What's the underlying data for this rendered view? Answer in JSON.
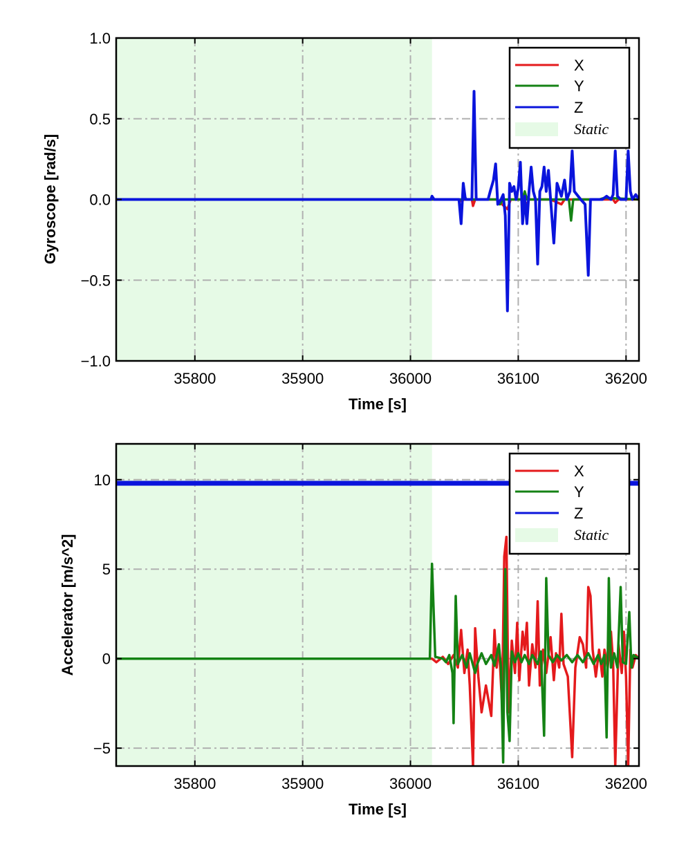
{
  "colors": {
    "x": "#e41a1c",
    "y": "#148214",
    "z": "#0a14dc",
    "static": "#e6fae6",
    "grid": "#b0b0b0"
  },
  "chart_data": [
    {
      "type": "line",
      "xlabel": "Time [s]",
      "ylabel": "Gyroscope [rad/s]",
      "xlim": [
        35727,
        36212
      ],
      "ylim": [
        -1.0,
        1.0
      ],
      "x_ticks": [
        35800,
        35900,
        36000,
        36100,
        36200
      ],
      "y_ticks": [
        -1.0,
        -0.5,
        0.0,
        0.5,
        1.0
      ],
      "y_tick_labels": [
        "−1.0",
        "−0.5",
        "0.0",
        "0.5",
        "1.0"
      ],
      "grid": true,
      "legend_position": "top-right",
      "legend": [
        "X",
        "Y",
        "Z",
        "Static"
      ],
      "static_region": [
        35727,
        36020
      ],
      "series": [
        {
          "name": "X",
          "color": "x",
          "points": [
            [
              35727,
              0
            ],
            [
              36020,
              0
            ],
            [
              36045,
              0
            ],
            [
              36047,
              -0.01
            ],
            [
              36050,
              0
            ],
            [
              36057,
              0
            ],
            [
              36058,
              -0.04
            ],
            [
              36060,
              0
            ],
            [
              36080,
              0
            ],
            [
              36090,
              -0.06
            ],
            [
              36093,
              0
            ],
            [
              36104,
              0
            ],
            [
              36107,
              -0.05
            ],
            [
              36110,
              0
            ],
            [
              36130,
              0
            ],
            [
              36140,
              -0.03
            ],
            [
              36143,
              0
            ],
            [
              36170,
              0
            ],
            [
              36188,
              0
            ],
            [
              36190,
              -0.02
            ],
            [
              36193,
              0
            ],
            [
              36212,
              0
            ]
          ]
        },
        {
          "name": "Y",
          "color": "y",
          "points": [
            [
              35727,
              0
            ],
            [
              36020,
              0
            ],
            [
              36049,
              0
            ],
            [
              36050,
              0.02
            ],
            [
              36052,
              0
            ],
            [
              36080,
              0
            ],
            [
              36083,
              -0.03
            ],
            [
              36086,
              0
            ],
            [
              36104,
              0
            ],
            [
              36106,
              0.05
            ],
            [
              36108,
              0
            ],
            [
              36147,
              0
            ],
            [
              36149,
              -0.13
            ],
            [
              36151,
              0
            ],
            [
              36175,
              0
            ],
            [
              36180,
              0.01
            ],
            [
              36212,
              0
            ]
          ]
        },
        {
          "name": "Z",
          "color": "z",
          "points": [
            [
              35727,
              0
            ],
            [
              36019,
              0
            ],
            [
              36020,
              0.02
            ],
            [
              36022,
              0
            ],
            [
              36045,
              0
            ],
            [
              36047,
              -0.15
            ],
            [
              36049,
              0.1
            ],
            [
              36051,
              0
            ],
            [
              36057,
              0
            ],
            [
              36059,
              0.67
            ],
            [
              36061,
              0
            ],
            [
              36072,
              0
            ],
            [
              36074,
              0.05
            ],
            [
              36077,
              0.12
            ],
            [
              36079,
              0.22
            ],
            [
              36081,
              -0.03
            ],
            [
              36084,
              0
            ],
            [
              36086,
              0.03
            ],
            [
              36088,
              -0.1
            ],
            [
              36090,
              -0.69
            ],
            [
              36092,
              0.1
            ],
            [
              36094,
              0.05
            ],
            [
              36096,
              0.08
            ],
            [
              36098,
              0
            ],
            [
              36100,
              0.07
            ],
            [
              36102,
              0.23
            ],
            [
              36104,
              -0.15
            ],
            [
              36106,
              0.02
            ],
            [
              36108,
              -0.15
            ],
            [
              36110,
              0.05
            ],
            [
              36112,
              0.2
            ],
            [
              36114,
              0.05
            ],
            [
              36116,
              0
            ],
            [
              36118,
              -0.4
            ],
            [
              36120,
              0.05
            ],
            [
              36122,
              0.08
            ],
            [
              36124,
              0.2
            ],
            [
              36126,
              0.05
            ],
            [
              36128,
              0.18
            ],
            [
              36130,
              0
            ],
            [
              36133,
              -0.27
            ],
            [
              36136,
              0.1
            ],
            [
              36140,
              0.02
            ],
            [
              36143,
              0.12
            ],
            [
              36145,
              0
            ],
            [
              36148,
              0.05
            ],
            [
              36150,
              0.3
            ],
            [
              36152,
              0.05
            ],
            [
              36158,
              0
            ],
            [
              36162,
              -0.03
            ],
            [
              36165,
              -0.47
            ],
            [
              36167,
              0
            ],
            [
              36172,
              0
            ],
            [
              36178,
              0
            ],
            [
              36182,
              0.02
            ],
            [
              36186,
              0
            ],
            [
              36188,
              0.03
            ],
            [
              36190,
              0.3
            ],
            [
              36192,
              0.02
            ],
            [
              36195,
              0
            ],
            [
              36200,
              0
            ],
            [
              36202,
              0.3
            ],
            [
              36204,
              0.05
            ],
            [
              36206,
              0
            ],
            [
              36209,
              0.03
            ],
            [
              36212,
              0
            ]
          ]
        }
      ]
    },
    {
      "type": "line",
      "xlabel": "Time [s]",
      "ylabel": "Accelerator [m/s^2]",
      "xlim": [
        35727,
        36212
      ],
      "ylim": [
        -6.0,
        12.0
      ],
      "x_ticks": [
        35800,
        35900,
        36000,
        36100,
        36200
      ],
      "y_ticks": [
        -5,
        0,
        5,
        10
      ],
      "y_tick_labels": [
        "−5",
        "0",
        "5",
        "10"
      ],
      "grid": true,
      "legend_position": "top-right",
      "legend": [
        "X",
        "Y",
        "Z",
        "Static"
      ],
      "static_region": [
        35727,
        36020
      ],
      "series": [
        {
          "name": "X",
          "color": "x",
          "points": [
            [
              35727,
              0
            ],
            [
              36020,
              0
            ],
            [
              36024,
              -0.2
            ],
            [
              36030,
              0.1
            ],
            [
              36035,
              -0.3
            ],
            [
              36040,
              0.2
            ],
            [
              36044,
              -0.5
            ],
            [
              36047,
              1.6
            ],
            [
              36050,
              -0.8
            ],
            [
              36053,
              0.5
            ],
            [
              36055,
              -1.5
            ],
            [
              36058,
              -6.0
            ],
            [
              36060,
              1.7
            ],
            [
              36063,
              -1.0
            ],
            [
              36066,
              -3.0
            ],
            [
              36070,
              -1.5
            ],
            [
              36075,
              -3.2
            ],
            [
              36078,
              1.6
            ],
            [
              36080,
              -0.5
            ],
            [
              36082,
              0.8
            ],
            [
              36085,
              -2.5
            ],
            [
              36087,
              5.7
            ],
            [
              36089,
              6.8
            ],
            [
              36091,
              -3.0
            ],
            [
              36094,
              1.0
            ],
            [
              36097,
              -0.8
            ],
            [
              36099,
              2.0
            ],
            [
              36101,
              -1.2
            ],
            [
              36104,
              1.5
            ],
            [
              36106,
              0.5
            ],
            [
              36108,
              2.0
            ],
            [
              36110,
              -1.5
            ],
            [
              36113,
              0.8
            ],
            [
              36116,
              -0.5
            ],
            [
              36118,
              3.2
            ],
            [
              36120,
              -1.5
            ],
            [
              36123,
              0.5
            ],
            [
              36126,
              -0.8
            ],
            [
              36130,
              1.2
            ],
            [
              36133,
              -1.2
            ],
            [
              36135,
              0.3
            ],
            [
              36138,
              -0.5
            ],
            [
              36140,
              2.5
            ],
            [
              36142,
              -0.3
            ],
            [
              36146,
              -1.0
            ],
            [
              36150,
              -5.5
            ],
            [
              36153,
              -0.5
            ],
            [
              36157,
              1.2
            ],
            [
              36160,
              0.8
            ],
            [
              36163,
              -0.5
            ],
            [
              36165,
              4.0
            ],
            [
              36167,
              3.5
            ],
            [
              36169,
              0.5
            ],
            [
              36172,
              -1.0
            ],
            [
              36175,
              0.5
            ],
            [
              36178,
              -1.0
            ],
            [
              36180,
              0.5
            ],
            [
              36183,
              -0.5
            ],
            [
              36186,
              1.5
            ],
            [
              36188,
              -0.2
            ],
            [
              36190,
              -6.0
            ],
            [
              36193,
              0.8
            ],
            [
              36196,
              -0.8
            ],
            [
              36198,
              1.5
            ],
            [
              36200,
              -1.0
            ],
            [
              36202,
              -6.0
            ],
            [
              36204,
              0.5
            ],
            [
              36206,
              -0.5
            ],
            [
              36209,
              0.2
            ],
            [
              36212,
              0
            ]
          ]
        },
        {
          "name": "Y",
          "color": "y",
          "points": [
            [
              35727,
              0
            ],
            [
              36018,
              0
            ],
            [
              36020,
              5.3
            ],
            [
              36023,
              0.1
            ],
            [
              36030,
              0
            ],
            [
              36033,
              -0.2
            ],
            [
              36036,
              0.2
            ],
            [
              36039,
              -0.8
            ],
            [
              36040,
              -3.6
            ],
            [
              36042,
              3.5
            ],
            [
              36044,
              -0.3
            ],
            [
              36048,
              0.2
            ],
            [
              36052,
              -0.5
            ],
            [
              36055,
              0.3
            ],
            [
              36060,
              -0.8
            ],
            [
              36062,
              -0.3
            ],
            [
              36066,
              0.3
            ],
            [
              36070,
              -0.3
            ],
            [
              36075,
              0.2
            ],
            [
              36078,
              -0.4
            ],
            [
              36082,
              0.8
            ],
            [
              36084,
              -0.5
            ],
            [
              36086,
              -5.8
            ],
            [
              36088,
              5.0
            ],
            [
              36090,
              -3.0
            ],
            [
              36092,
              -4.6
            ],
            [
              36094,
              0.4
            ],
            [
              36097,
              -0.2
            ],
            [
              36100,
              0.3
            ],
            [
              36103,
              -0.2
            ],
            [
              36106,
              0.2
            ],
            [
              36110,
              -0.3
            ],
            [
              36113,
              0.2
            ],
            [
              36118,
              -0.3
            ],
            [
              36121,
              0.4
            ],
            [
              36124,
              -4.3
            ],
            [
              36126,
              4.5
            ],
            [
              36128,
              0.2
            ],
            [
              36132,
              -0.2
            ],
            [
              36136,
              0.2
            ],
            [
              36140,
              -0.1
            ],
            [
              36145,
              0.2
            ],
            [
              36150,
              -0.2
            ],
            [
              36155,
              0.2
            ],
            [
              36160,
              -0.2
            ],
            [
              36165,
              0.3
            ],
            [
              36170,
              -0.3
            ],
            [
              36174,
              0.2
            ],
            [
              36177,
              -0.3
            ],
            [
              36180,
              0.2
            ],
            [
              36182,
              -4.4
            ],
            [
              36184,
              4.5
            ],
            [
              36186,
              -0.5
            ],
            [
              36189,
              0.3
            ],
            [
              36192,
              -0.5
            ],
            [
              36195,
              4.0
            ],
            [
              36197,
              -0.2
            ],
            [
              36200,
              -0.3
            ],
            [
              36203,
              2.6
            ],
            [
              36205,
              -0.5
            ],
            [
              36207,
              0.2
            ],
            [
              36212,
              0
            ]
          ]
        },
        {
          "name": "Z",
          "color": "z",
          "points": [
            [
              35727,
              9.8
            ],
            [
              36212,
              9.8
            ]
          ]
        }
      ]
    }
  ]
}
